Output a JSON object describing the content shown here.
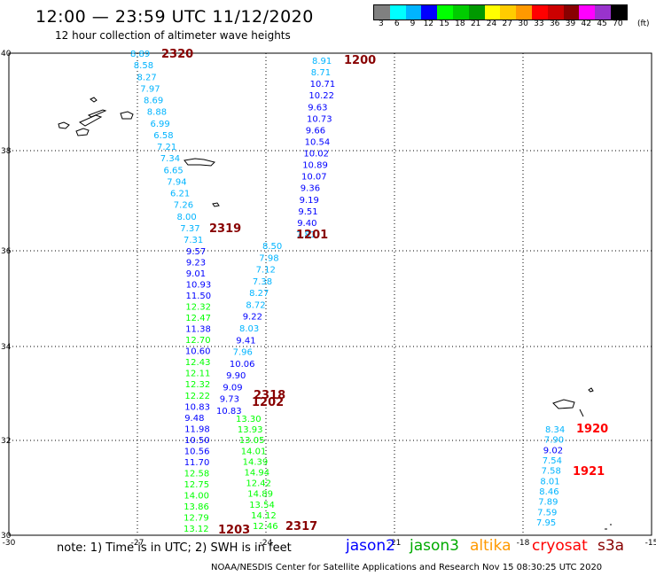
{
  "title": "12:00 — 23:59 UTC 11/12/2020",
  "subtitle": "12 hour collection of altimeter wave heights",
  "legend": {
    "unit": "(ft)",
    "colors": [
      "#808080",
      "#00ffff",
      "#00b4ff",
      "#0000ff",
      "#00ff00",
      "#00cc00",
      "#009900",
      "#ffff00",
      "#ffcc00",
      "#ff9900",
      "#ff0000",
      "#cc0000",
      "#880000",
      "#ff00ff",
      "#9933cc",
      "#000000"
    ],
    "labels": [
      "3",
      "6",
      "9",
      "12",
      "15",
      "18",
      "21",
      "24",
      "27",
      "30",
      "33",
      "36",
      "39",
      "42",
      "45",
      "70"
    ]
  },
  "axes": {
    "lon_ticks": [
      "-30",
      "-27",
      "-24",
      "-21",
      "-18",
      "-15"
    ],
    "lat_ticks": [
      "40",
      "38",
      "36",
      "34",
      "32",
      "30"
    ]
  },
  "tracks": [
    {
      "mission": "jason2",
      "time": "1200",
      "time_color": "#880000",
      "values": [
        "8.91",
        "8.71",
        "10.71",
        "10.22",
        "9.63",
        "10.73",
        "9.66",
        "10.54",
        "10.02",
        "10.89",
        "10.07",
        "9.36",
        "9.19",
        "9.51",
        "9.40",
        "7.81"
      ],
      "colors": [
        "#00b4ff",
        "#00b4ff",
        "#0000ff",
        "#0000ff",
        "#0000ff",
        "#0000ff",
        "#0000ff",
        "#0000ff",
        "#0000ff",
        "#0000ff",
        "#0000ff",
        "#0000ff",
        "#0000ff",
        "#0000ff",
        "#0000ff",
        "#00b4ff"
      ]
    },
    {
      "mission": "jason2",
      "time": "1201",
      "time_color": "#880000",
      "values": [
        "8.50",
        "7.98",
        "7.12",
        "7.38",
        "8.27",
        "8.72",
        "9.22",
        "8.03",
        "9.41",
        "7.96",
        "10.06",
        "9.90",
        "9.09",
        "9.73",
        "10.83"
      ],
      "colors": [
        "#00b4ff",
        "#00b4ff",
        "#00b4ff",
        "#00b4ff",
        "#00b4ff",
        "#00b4ff",
        "#0000ff",
        "#00b4ff",
        "#0000ff",
        "#00b4ff",
        "#0000ff",
        "#0000ff",
        "#0000ff",
        "#0000ff",
        "#0000ff"
      ]
    },
    {
      "mission": "jason3",
      "time": "2317",
      "time_color": "#880000",
      "values": [
        "13.30",
        "13.93",
        "13.05",
        "14.01",
        "14.39",
        "14.94",
        "12.42",
        "14.89",
        "13.54",
        "14.12",
        "12.46"
      ],
      "colors": [
        "#00ff00",
        "#00ff00",
        "#00ff00",
        "#00ff00",
        "#00ff00",
        "#00ff00",
        "#00ff00",
        "#00ff00",
        "#00ff00",
        "#00ff00",
        "#00ff00"
      ]
    },
    {
      "mission": "jason3",
      "time": "2320",
      "time_color": "#880000",
      "values": [
        "8.89",
        "8.58",
        "8.27",
        "7.97",
        "8.69",
        "8.88",
        "6.99",
        "6.58",
        "7.21",
        "7.34",
        "6.65",
        "7.94",
        "6.21",
        "7.26",
        "8.00",
        "7.37",
        "7.31"
      ],
      "colors": [
        "#00b4ff",
        "#00b4ff",
        "#00b4ff",
        "#00b4ff",
        "#00b4ff",
        "#00b4ff",
        "#00b4ff",
        "#00b4ff",
        "#00b4ff",
        "#00b4ff",
        "#00b4ff",
        "#00b4ff",
        "#00b4ff",
        "#00b4ff",
        "#00b4ff",
        "#00b4ff",
        "#00b4ff"
      ]
    },
    {
      "mission": "jason3",
      "time": "2319",
      "time_color": "#880000",
      "values": [
        "9.57",
        "9.23",
        "9.01",
        "10.93",
        "11.50",
        "12.32",
        "12.47",
        "11.38",
        "12.70",
        "10.60",
        "12.43",
        "12.11",
        "12.32",
        "12.22",
        "10.83",
        "9.48",
        "11.98",
        "10.50",
        "10.56",
        "11.70",
        "12.58",
        "12.75",
        "14.00",
        "13.86",
        "12.79",
        "13.12"
      ],
      "colors": [
        "#0000ff",
        "#0000ff",
        "#0000ff",
        "#0000ff",
        "#0000ff",
        "#00ff00",
        "#00ff00",
        "#0000ff",
        "#00ff00",
        "#0000ff",
        "#00ff00",
        "#00ff00",
        "#00ff00",
        "#00ff00",
        "#0000ff",
        "#0000ff",
        "#0000ff",
        "#0000ff",
        "#0000ff",
        "#0000ff",
        "#00ff00",
        "#00ff00",
        "#00ff00",
        "#00ff00",
        "#00ff00",
        "#00ff00"
      ]
    },
    {
      "mission": "cryosat",
      "time": "1920",
      "time_color": "#ff0000",
      "values": [
        "8.34",
        "7.90",
        "9.02",
        "7.54",
        "7.58",
        "8.01",
        "8.46",
        "7.89",
        "7.59",
        "7.95"
      ],
      "colors": [
        "#00b4ff",
        "#00b4ff",
        "#0000ff",
        "#00b4ff",
        "#00b4ff",
        "#00b4ff",
        "#00b4ff",
        "#00b4ff",
        "#00b4ff",
        "#00b4ff"
      ]
    }
  ],
  "extra_time_labels": [
    {
      "time": "1202",
      "color": "#880000"
    },
    {
      "time": "2318",
      "color": "#880000"
    },
    {
      "time": "1203",
      "color": "#880000"
    },
    {
      "time": "1921",
      "color": "#ff0000"
    }
  ],
  "note": "note:  1) Time is in UTC;  2) SWH is in feet",
  "missions": [
    {
      "label": "jason2",
      "color": "#0000ff"
    },
    {
      "label": "jason3",
      "color": "#00aa00"
    },
    {
      "label": "altika",
      "color": "#ff9900"
    },
    {
      "label": "cryosat",
      "color": "#ff0000"
    },
    {
      "label": "s3a",
      "color": "#880000"
    }
  ],
  "credits": "NOAA/NESDIS Center for Satellite Applications and Research     Nov 15 08:30:25 UTC 2020"
}
